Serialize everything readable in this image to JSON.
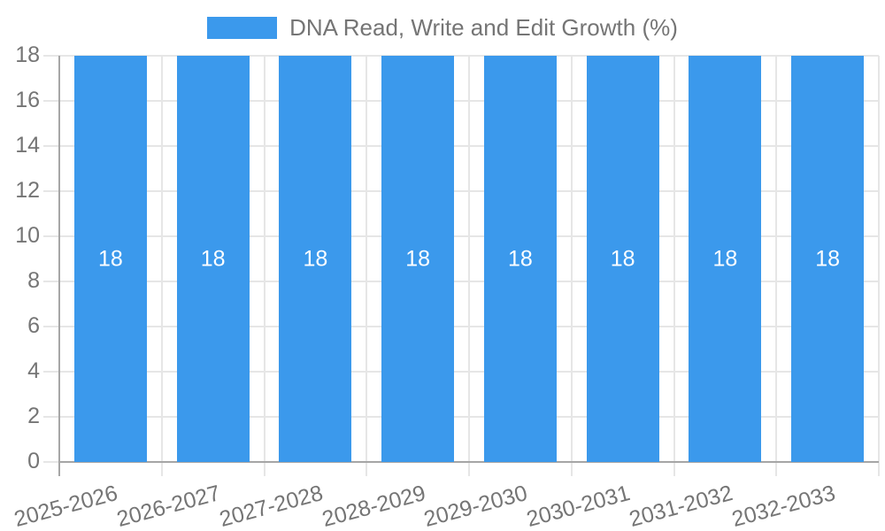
{
  "legend": {
    "position": "top"
  },
  "chart_data": {
    "type": "bar",
    "title": "DNA Read, Write and Edit Growth (%)",
    "categories": [
      "2025-2026",
      "2026-2027",
      "2027-2028",
      "2028-2029",
      "2029-2030",
      "2030-2031",
      "2031-2032",
      "2032-2033"
    ],
    "values": [
      18,
      18,
      18,
      18,
      18,
      18,
      18,
      18
    ],
    "bar_labels": [
      "18",
      "18",
      "18",
      "18",
      "18",
      "18",
      "18",
      "18"
    ],
    "xlabel": "",
    "ylabel": "",
    "ylim": [
      0,
      18
    ],
    "yticks": [
      "0",
      "2",
      "4",
      "6",
      "8",
      "10",
      "12",
      "14",
      "16",
      "18"
    ],
    "grid": true,
    "legend_position": "top",
    "colors": {
      "bar": "#3b99ec",
      "bar_label": "#ffffff",
      "grid": "#e6e6e6",
      "axis": "#a6a6a6",
      "tick_text": "#757575",
      "legend_text": "#757575",
      "background": "#ffffff"
    }
  }
}
